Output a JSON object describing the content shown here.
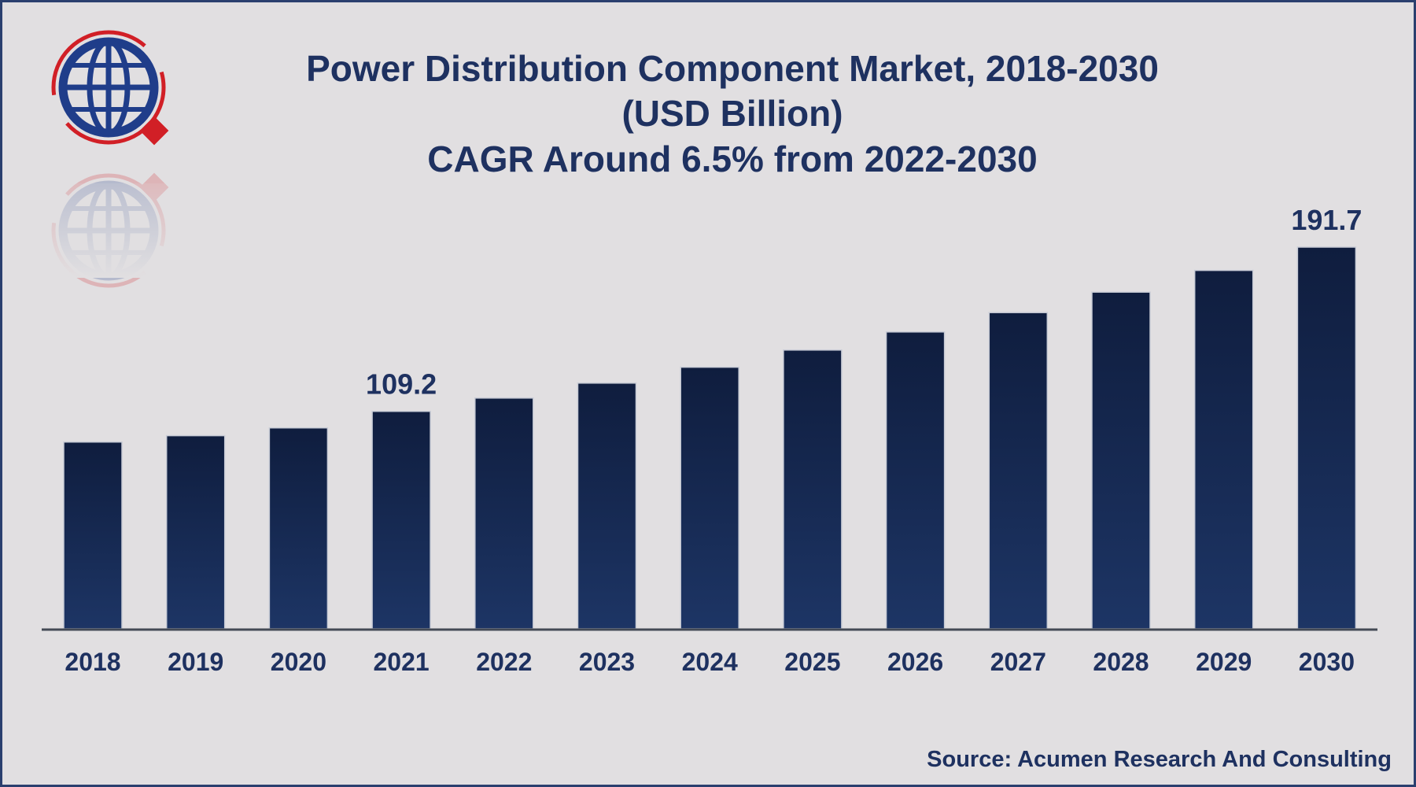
{
  "chart_data": {
    "type": "bar",
    "title_lines": [
      "Power Distribution Component Market, 2018-2030",
      "(USD Billion)",
      "CAGR Around 6.5% from 2022-2030"
    ],
    "categories": [
      "2018",
      "2019",
      "2020",
      "2021",
      "2022",
      "2023",
      "2024",
      "2025",
      "2026",
      "2027",
      "2028",
      "2029",
      "2030"
    ],
    "values": [
      93.8,
      97.0,
      100.9,
      109.2,
      115.9,
      123.4,
      131.4,
      140.0,
      149.1,
      158.8,
      169.1,
      180.0,
      191.7
    ],
    "data_labels": [
      {
        "index": 3,
        "text": "109.2"
      },
      {
        "index": 12,
        "text": "191.7"
      }
    ],
    "ylim": [
      0,
      200
    ],
    "grid": false,
    "legend": "none",
    "bar_color_top": "#0f1d3e",
    "bar_color_bottom": "#1d3565",
    "axis_color": "#444a55"
  },
  "source": "Source: Acumen Research And Consulting",
  "logo": {
    "icon": "globe-magnifier-logo",
    "globe_color": "#1f3d8a",
    "accent_color": "#d11f26"
  }
}
